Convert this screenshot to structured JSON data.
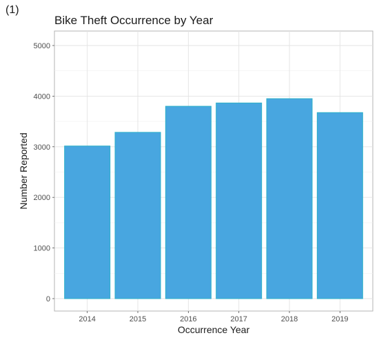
{
  "panel_label": "(1)",
  "chart_data": {
    "type": "bar",
    "title": "Bike Theft Occurrence by Year",
    "xlabel": "Occurrence Year",
    "ylabel": "Number Reported",
    "categories": [
      "2014",
      "2015",
      "2016",
      "2017",
      "2018",
      "2019"
    ],
    "values": [
      3015,
      3285,
      3800,
      3865,
      3950,
      3675
    ],
    "ylim": [
      0,
      5000
    ],
    "yticks": [
      0,
      1000,
      2000,
      3000,
      4000,
      5000
    ],
    "grid": true,
    "bar_fill": "#48a6e0",
    "bar_stroke": "#2bb0c8"
  }
}
